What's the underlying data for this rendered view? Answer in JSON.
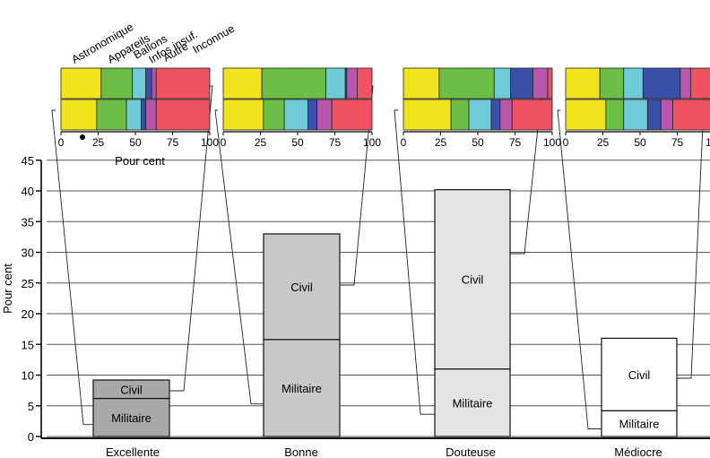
{
  "chart_data": {
    "type": "bar",
    "ylabel": "Pour cent",
    "ylim": [
      0,
      45
    ],
    "yticks": [
      "0",
      "5",
      "10",
      "15",
      "20",
      "25",
      "30",
      "35",
      "40",
      "45"
    ],
    "grid": true,
    "categories": [
      "Excellente",
      "Bonne",
      "Douteuse",
      "Médiocre"
    ],
    "series": [
      {
        "name": "Militaire",
        "values": [
          6.2,
          15.8,
          11.0,
          4.2
        ]
      },
      {
        "name": "Civil",
        "values": [
          3.0,
          17.2,
          29.2,
          11.8
        ]
      }
    ],
    "bar_fills": [
      "#a9a9a9",
      "#c8c8c8",
      "#e4e4e4",
      "#ffffff"
    ],
    "insets": {
      "xlabel": "Pour cent",
      "xticks": [
        "0",
        "25",
        "50",
        "75",
        "100"
      ],
      "explanation_labels": [
        "Astronomique",
        "Appareils",
        "Ballons",
        "Infos insuf.",
        "Autre",
        "Inconnue"
      ],
      "colors": [
        "#f1e41c",
        "#6bbf47",
        "#6dccd8",
        "#3a4fa8",
        "#b856ab",
        "#ef5260"
      ],
      "panels": [
        {
          "category": "Excellente",
          "rows": [
            {
              "series": "Civil",
              "values": [
                27,
                21,
                9,
                4,
                3,
                36
              ]
            },
            {
              "series": "Militaire",
              "values": [
                24,
                20,
                10,
                3,
                7,
                36
              ]
            }
          ]
        },
        {
          "category": "Bonne",
          "rows": [
            {
              "series": "Civil",
              "values": [
                26,
                43,
                13,
                1,
                7,
                10
              ]
            },
            {
              "series": "Militaire",
              "values": [
                27,
                14,
                16,
                6,
                10,
                27
              ]
            }
          ]
        },
        {
          "category": "Douteuse",
          "rows": [
            {
              "series": "Civil",
              "values": [
                24,
                37,
                11,
                15,
                10,
                3
              ]
            },
            {
              "series": "Militaire",
              "values": [
                32,
                12,
                15,
                6,
                8,
                27
              ]
            }
          ]
        },
        {
          "category": "Médiocre",
          "rows": [
            {
              "series": "Civil",
              "values": [
                23,
                16,
                13,
                25,
                7,
                16
              ]
            },
            {
              "series": "Militaire",
              "values": [
                27,
                12,
                16,
                9,
                8,
                28
              ]
            }
          ]
        }
      ]
    }
  }
}
